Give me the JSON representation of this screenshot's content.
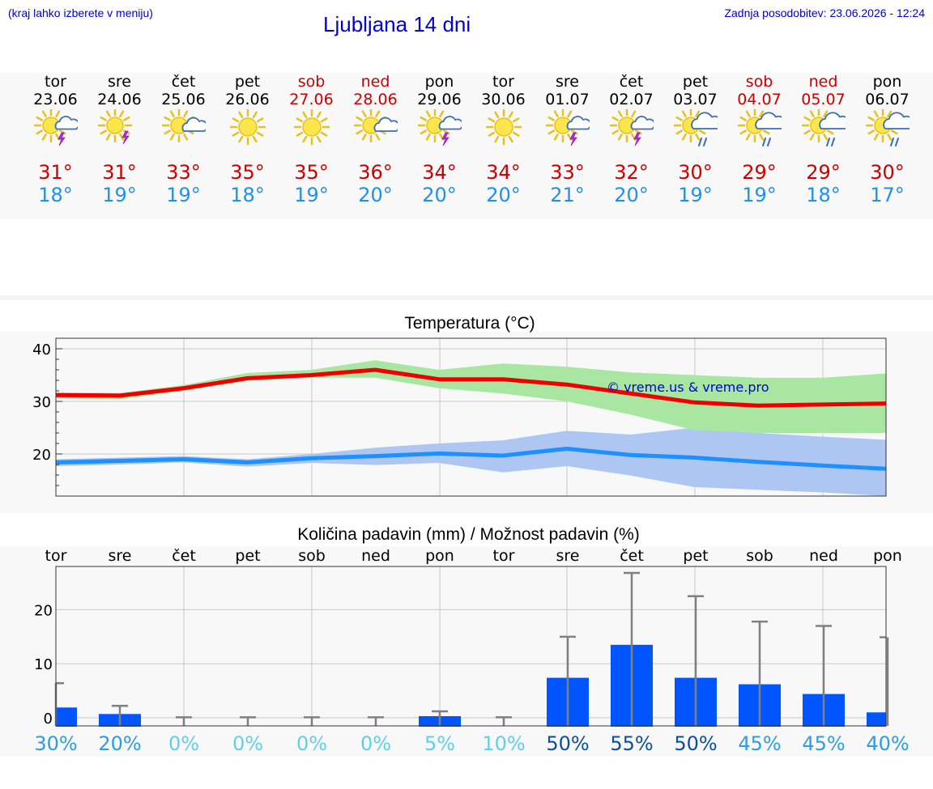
{
  "header": {
    "hint": "(kraj lahko izberete v meniju)",
    "title": "Ljubljana 14 dni",
    "updated": "Zadnja posodobitev: 23.06.2026 - 12:24"
  },
  "days": [
    {
      "name": "tor",
      "date": "23.06",
      "weekend": false,
      "icon": "sun-cloud-thunder-icon",
      "tmax": "31°",
      "tmin": "18°"
    },
    {
      "name": "sre",
      "date": "24.06",
      "weekend": false,
      "icon": "sun-thunder-icon",
      "tmax": "31°",
      "tmin": "19°"
    },
    {
      "name": "čet",
      "date": "25.06",
      "weekend": false,
      "icon": "sun-cloud-icon",
      "tmax": "33°",
      "tmin": "19°"
    },
    {
      "name": "pet",
      "date": "26.06",
      "weekend": false,
      "icon": "sun-icon",
      "tmax": "35°",
      "tmin": "18°"
    },
    {
      "name": "sob",
      "date": "27.06",
      "weekend": true,
      "icon": "sun-icon",
      "tmax": "35°",
      "tmin": "19°"
    },
    {
      "name": "ned",
      "date": "28.06",
      "weekend": true,
      "icon": "sun-cloud-icon",
      "tmax": "36°",
      "tmin": "20°"
    },
    {
      "name": "pon",
      "date": "29.06",
      "weekend": false,
      "icon": "sun-cloud-thunder-icon",
      "tmax": "34°",
      "tmin": "20°"
    },
    {
      "name": "tor",
      "date": "30.06",
      "weekend": false,
      "icon": "sun-icon",
      "tmax": "34°",
      "tmin": "20°"
    },
    {
      "name": "sre",
      "date": "01.07",
      "weekend": false,
      "icon": "sun-cloud-thunder-icon",
      "tmax": "33°",
      "tmin": "21°"
    },
    {
      "name": "čet",
      "date": "02.07",
      "weekend": false,
      "icon": "sun-cloud-thunder-icon",
      "tmax": "32°",
      "tmin": "20°"
    },
    {
      "name": "pet",
      "date": "03.07",
      "weekend": false,
      "icon": "sun-cloud-rain-icon",
      "tmax": "30°",
      "tmin": "19°"
    },
    {
      "name": "sob",
      "date": "04.07",
      "weekend": true,
      "icon": "sun-cloud-rain-icon",
      "tmax": "29°",
      "tmin": "19°"
    },
    {
      "name": "ned",
      "date": "05.07",
      "weekend": true,
      "icon": "sun-cloud-rain-icon",
      "tmax": "29°",
      "tmin": "18°"
    },
    {
      "name": "pon",
      "date": "06.07",
      "weekend": false,
      "icon": "sun-cloud-rain-icon",
      "tmax": "30°",
      "tmin": "17°"
    }
  ],
  "colors": {
    "max_line": "#ee0000",
    "max_band": "#a8e6a2",
    "min_line": "#1e90ff",
    "min_band": "#adc6f2",
    "bar": "#0055ff",
    "whisker": "#808080",
    "grid": "#c8c8c8",
    "weekend_text": "#cc0000",
    "pct_high": "#0a4f9e",
    "pct_mid": "#2d9ee0",
    "pct_low": "#5fd0e6"
  },
  "chart_data": [
    {
      "type": "line",
      "title": "Temperatura (°C)",
      "watermark": "© vreme.us & vreme.pro",
      "yticks": [
        20,
        30,
        40
      ],
      "ylim": [
        12,
        42
      ],
      "x": [
        0,
        1,
        2,
        3,
        4,
        5,
        6,
        7,
        8,
        9,
        10,
        11,
        12,
        13
      ],
      "series": [
        {
          "role": "max",
          "values": [
            31.2,
            31.1,
            32.5,
            34.4,
            35.0,
            36.0,
            34.2,
            34.2,
            33.2,
            31.5,
            29.8,
            29.2,
            29.4,
            29.6
          ],
          "band_low": [
            30.6,
            30.4,
            32.0,
            33.9,
            34.5,
            34.5,
            32.5,
            31.5,
            30.0,
            27.5,
            24.5,
            24.0,
            24.0,
            24.0
          ],
          "band_high": [
            31.7,
            31.6,
            33.1,
            35.4,
            36.0,
            37.8,
            36.0,
            37.2,
            36.6,
            35.5,
            35.0,
            34.5,
            34.5,
            35.3
          ]
        },
        {
          "role": "min",
          "values": [
            18.4,
            18.7,
            19.0,
            18.4,
            19.2,
            19.6,
            20.1,
            19.7,
            21.0,
            19.8,
            19.3,
            18.5,
            17.8,
            17.2
          ],
          "band_low": [
            17.7,
            18.0,
            18.4,
            17.6,
            18.3,
            17.9,
            18.3,
            16.5,
            17.7,
            15.9,
            13.7,
            13.2,
            12.7,
            12.0
          ],
          "band_high": [
            19.0,
            19.3,
            19.6,
            19.0,
            20.0,
            21.2,
            22.0,
            22.6,
            24.4,
            23.7,
            25.0,
            24.0,
            23.3,
            22.7
          ]
        }
      ]
    },
    {
      "type": "bar",
      "title": "Količina padavin (mm) / Možnost padavin (%)",
      "categories": [
        "tor",
        "sre",
        "čet",
        "pet",
        "sob",
        "ned",
        "pon",
        "tor",
        "sre",
        "čet",
        "pet",
        "sob",
        "ned",
        "pon"
      ],
      "yticks": [
        0,
        10,
        20
      ],
      "ylim": [
        -1.5,
        28
      ],
      "values": [
        1.9,
        0.7,
        0,
        0,
        0,
        0,
        0.3,
        0,
        7.4,
        13.5,
        7.4,
        6.2,
        4.4,
        1.0
      ],
      "whisker_high": [
        6.4,
        2.2,
        0.1,
        0.1,
        0.1,
        0.1,
        1.2,
        0.1,
        15.0,
        26.8,
        22.5,
        17.8,
        17.0,
        14.9
      ],
      "probability": [
        "30%",
        "20%",
        "0%",
        "0%",
        "0%",
        "0%",
        "5%",
        "10%",
        "50%",
        "55%",
        "50%",
        "45%",
        "45%",
        "40%"
      ]
    }
  ]
}
